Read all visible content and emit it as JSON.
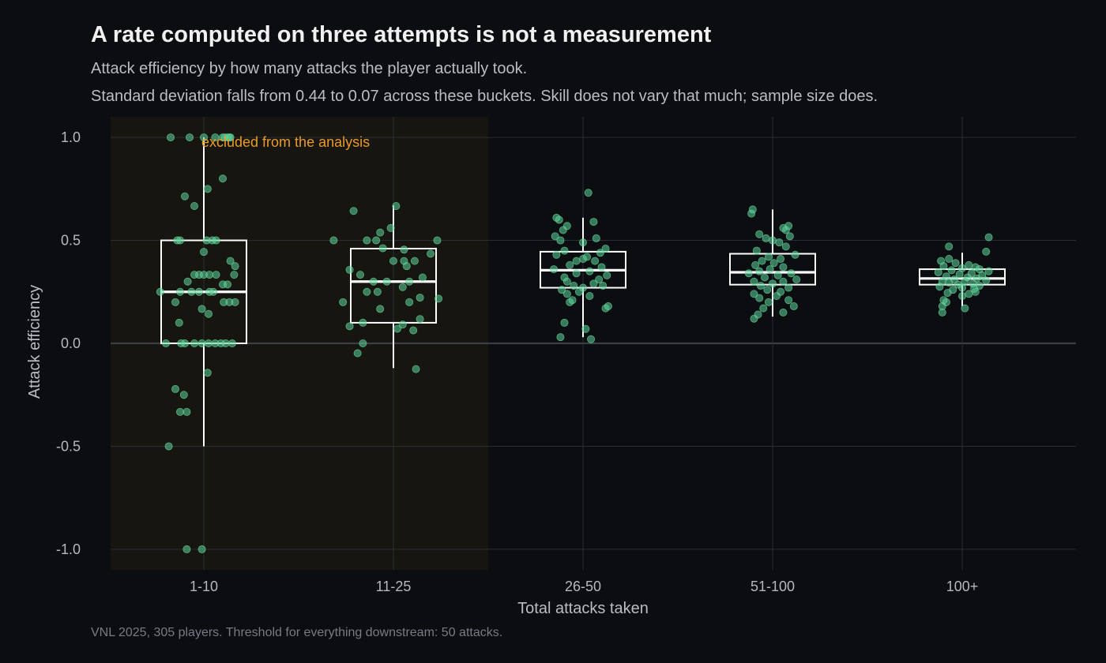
{
  "title": "A rate computed on three attempts is not a measurement",
  "subtitle_line1": "Attack efficiency by how many attacks the player actually took.",
  "subtitle_line2": "Standard deviation falls from 0.44 to 0.07 across these buckets. Skill does not vary that much; sample size does.",
  "caption": "VNL 2025, 305 players. Threshold for everything downstream: 50 attacks.",
  "colors": {
    "background": "#0b0d11",
    "points": "#5fd39a",
    "box": "#ffffff",
    "excluded_region": "#17150f",
    "annotation": "#e89a2c",
    "grid": "#2a2d33"
  },
  "chart_data": {
    "type": "box",
    "xlabel": "Total attacks taken",
    "ylabel": "Attack efficiency",
    "categories": [
      "1-10",
      "11-25",
      "26-50",
      "51-100",
      "100+"
    ],
    "ylim": [
      -1.1,
      1.1
    ],
    "yticks": [
      -1.0,
      -0.5,
      0.0,
      0.5,
      1.0
    ],
    "ytick_labels": [
      "-1.0",
      "-0.5",
      "0.0",
      "0.5",
      "1.0"
    ],
    "grid": true,
    "excluded_categories": [
      "1-10",
      "11-25"
    ],
    "annotation": "excluded from the analysis",
    "boxes": [
      {
        "category": "1-10",
        "whisker_low": -0.5,
        "q1": 0.0,
        "median": 0.25,
        "q3": 0.5,
        "whisker_high": 1.0
      },
      {
        "category": "11-25",
        "whisker_low": -0.12,
        "q1": 0.1,
        "median": 0.3,
        "q3": 0.46,
        "whisker_high": 0.67
      },
      {
        "category": "26-50",
        "whisker_low": 0.03,
        "q1": 0.27,
        "median": 0.355,
        "q3": 0.445,
        "whisker_high": 0.61
      },
      {
        "category": "51-100",
        "whisker_low": 0.13,
        "q1": 0.285,
        "median": 0.345,
        "q3": 0.435,
        "whisker_high": 0.65
      },
      {
        "category": "100+",
        "whisker_low": 0.18,
        "q1": 0.285,
        "median": 0.315,
        "q3": 0.36,
        "whisker_high": 0.44
      }
    ],
    "points": [
      {
        "category": "1-10",
        "values": [
          1.0,
          1.0,
          1.0,
          1.0,
          1.0,
          1.0,
          1.0,
          1.0,
          1.0,
          0.8,
          0.75,
          0.714,
          0.667,
          0.5,
          0.5,
          0.5,
          0.5,
          0.5,
          0.444,
          0.4,
          0.375,
          0.333,
          0.333,
          0.333,
          0.333,
          0.333,
          0.333,
          0.3,
          0.286,
          0.286,
          0.25,
          0.25,
          0.25,
          0.25,
          0.25,
          0.25,
          0.2,
          0.2,
          0.2,
          0.2,
          0.167,
          0.143,
          0.1,
          0.0,
          0.0,
          0.0,
          0.0,
          0.0,
          0.0,
          0.0,
          0.0,
          0.0,
          0.0,
          -0.143,
          -0.222,
          -0.25,
          -0.333,
          -0.333,
          -0.5,
          -1.0,
          -1.0
        ],
        "offsets": [
          -0.35,
          -0.15,
          0.0,
          0.12,
          0.2,
          0.22,
          0.25,
          0.27,
          0.28,
          0.2,
          0.04,
          -0.2,
          -0.1,
          -0.28,
          -0.25,
          0.03,
          0.09,
          0.13,
          0.0,
          0.28,
          0.33,
          -0.1,
          -0.05,
          0.0,
          0.06,
          0.13,
          0.32,
          -0.17,
          0.2,
          0.25,
          -0.46,
          -0.25,
          -0.13,
          -0.05,
          0.06,
          0.1,
          -0.3,
          0.21,
          0.27,
          0.33,
          -0.02,
          0.05,
          -0.26,
          -0.4,
          -0.24,
          -0.2,
          -0.1,
          -0.02,
          0.05,
          0.12,
          0.18,
          0.23,
          0.3,
          0.04,
          -0.3,
          -0.21,
          -0.25,
          -0.18,
          -0.37,
          -0.18,
          -0.02
        ]
      },
      {
        "category": "11-25",
        "values": [
          0.667,
          0.643,
          0.56,
          0.538,
          0.5,
          0.5,
          0.5,
          0.5,
          0.462,
          0.455,
          0.435,
          0.4,
          0.4,
          0.4,
          0.375,
          0.357,
          0.333,
          0.32,
          0.3,
          0.3,
          0.3,
          0.273,
          0.25,
          0.25,
          0.222,
          0.217,
          0.2,
          0.2,
          0.167,
          0.118,
          0.1,
          0.091,
          0.083,
          0.071,
          0.063,
          0.0,
          -0.048,
          -0.125
        ],
        "offsets": [
          0.02,
          -0.3,
          -0.02,
          -0.1,
          -0.45,
          -0.2,
          -0.13,
          0.33,
          -0.08,
          0.08,
          0.28,
          0.0,
          0.08,
          0.16,
          0.1,
          -0.33,
          -0.25,
          0.22,
          -0.15,
          -0.05,
          0.12,
          0.07,
          -0.12,
          -0.2,
          0.2,
          0.34,
          -0.38,
          0.12,
          -0.1,
          0.2,
          -0.23,
          0.07,
          -0.33,
          0.03,
          0.15,
          -0.23,
          -0.27,
          0.17
        ],
        "comment": "offsets are fractions of category spacing"
      },
      {
        "category": "26-50",
        "values": [
          0.731,
          0.61,
          0.6,
          0.59,
          0.57,
          0.55,
          0.52,
          0.51,
          0.5,
          0.49,
          0.46,
          0.45,
          0.44,
          0.43,
          0.42,
          0.41,
          0.4,
          0.4,
          0.38,
          0.37,
          0.36,
          0.35,
          0.34,
          0.33,
          0.32,
          0.31,
          0.3,
          0.29,
          0.28,
          0.28,
          0.27,
          0.26,
          0.25,
          0.24,
          0.23,
          0.21,
          0.2,
          0.18,
          0.17,
          0.1,
          0.07,
          0.03,
          0.02
        ],
        "offsets": [
          0.04,
          -0.2,
          -0.18,
          0.08,
          -0.12,
          -0.15,
          -0.21,
          0.1,
          -0.17,
          0.0,
          0.17,
          -0.14,
          0.13,
          -0.2,
          0.03,
          0.0,
          0.09,
          -0.05,
          -0.1,
          0.14,
          -0.22,
          0.05,
          -0.05,
          0.18,
          -0.14,
          0.12,
          -0.12,
          0.08,
          0.15,
          -0.07,
          0.0,
          -0.16,
          -0.03,
          -0.12,
          0.05,
          -0.08,
          -0.1,
          0.19,
          0.17,
          -0.14,
          0.02,
          -0.17,
          0.06
        ],
        "comment": "offsets are fractions of category spacing"
      },
      {
        "category": "51-100",
        "values": [
          0.65,
          0.63,
          0.57,
          0.56,
          0.55,
          0.53,
          0.52,
          0.51,
          0.5,
          0.49,
          0.47,
          0.45,
          0.43,
          0.42,
          0.41,
          0.4,
          0.39,
          0.38,
          0.37,
          0.36,
          0.35,
          0.34,
          0.34,
          0.33,
          0.32,
          0.31,
          0.3,
          0.3,
          0.29,
          0.28,
          0.27,
          0.26,
          0.25,
          0.24,
          0.23,
          0.22,
          0.21,
          0.2,
          0.18,
          0.17,
          0.15,
          0.14,
          0.12
        ],
        "offsets": [
          -0.15,
          -0.16,
          0.12,
          0.08,
          0.1,
          -0.1,
          0.13,
          -0.05,
          0.0,
          0.05,
          0.1,
          -0.12,
          0.17,
          -0.03,
          0.06,
          -0.08,
          0.01,
          -0.13,
          0.08,
          -0.02,
          -0.1,
          0.14,
          -0.18,
          0.04,
          -0.06,
          0.18,
          -0.14,
          0.08,
          0.0,
          -0.09,
          0.12,
          -0.04,
          0.06,
          -0.14,
          0.03,
          -0.1,
          0.12,
          -0.03,
          0.16,
          -0.07,
          0.08,
          -0.11,
          -0.14
        ],
        "comment": "offsets are fractions of category spacing"
      },
      {
        "category": "100+",
        "values": [
          0.515,
          0.47,
          0.445,
          0.41,
          0.4,
          0.39,
          0.38,
          0.375,
          0.37,
          0.365,
          0.36,
          0.355,
          0.35,
          0.345,
          0.34,
          0.335,
          0.33,
          0.325,
          0.32,
          0.315,
          0.31,
          0.305,
          0.3,
          0.3,
          0.295,
          0.29,
          0.285,
          0.28,
          0.275,
          0.27,
          0.265,
          0.26,
          0.25,
          0.245,
          0.24,
          0.23,
          0.21,
          0.2,
          0.18,
          0.17,
          0.15
        ],
        "offsets": [
          0.2,
          -0.1,
          0.18,
          -0.1,
          -0.16,
          -0.05,
          0.05,
          -0.14,
          0.1,
          0.0,
          0.13,
          -0.08,
          0.2,
          -0.18,
          0.07,
          -0.02,
          0.15,
          -0.12,
          0.04,
          0.11,
          -0.06,
          0.18,
          -0.15,
          0.02,
          -0.1,
          0.08,
          -0.03,
          0.13,
          -0.17,
          0.0,
          0.09,
          -0.07,
          0.1,
          -0.11,
          0.05,
          0.0,
          -0.14,
          -0.12,
          -0.15,
          0.02,
          -0.15
        ],
        "comment": "offsets are fractions of category spacing"
      }
    ]
  }
}
